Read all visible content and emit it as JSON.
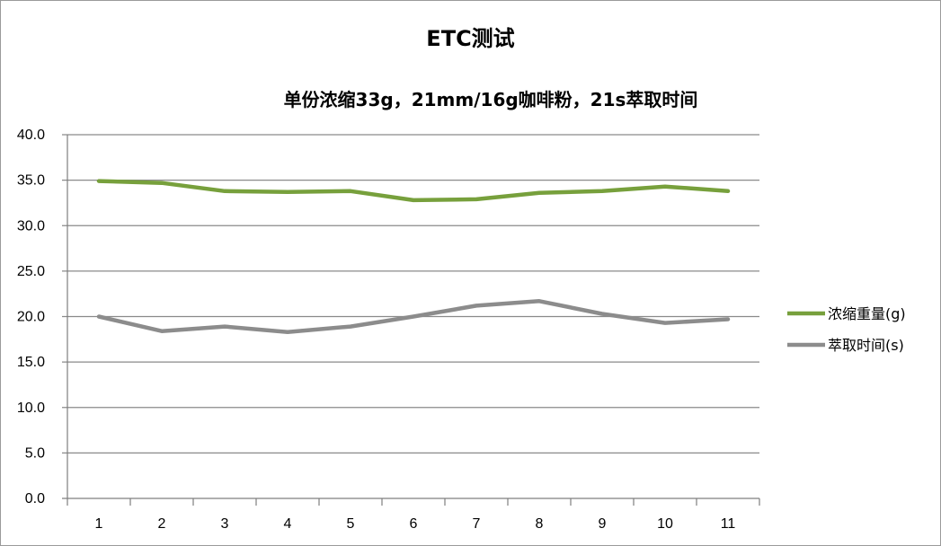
{
  "chart_data": {
    "type": "line",
    "title": "ETC测试",
    "subtitle": "单份浓缩33g，21mm/16g咖啡粉，21s萃取时间",
    "xlabel": "",
    "ylabel": "",
    "categories": [
      "1",
      "2",
      "3",
      "4",
      "5",
      "6",
      "7",
      "8",
      "9",
      "10",
      "11"
    ],
    "ylim": [
      0,
      40
    ],
    "yticks": [
      "0.0",
      "5.0",
      "10.0",
      "15.0",
      "20.0",
      "25.0",
      "30.0",
      "35.0",
      "40.0"
    ],
    "grid": true,
    "legend_position": "right",
    "series": [
      {
        "name": "浓缩重量(g)",
        "color": "#77a03c",
        "values": [
          34.9,
          34.7,
          33.8,
          33.7,
          33.8,
          32.8,
          32.9,
          33.6,
          33.8,
          34.3,
          33.8
        ]
      },
      {
        "name": "萃取时间(s)",
        "color": "#8c8c8c",
        "values": [
          20.0,
          18.4,
          18.9,
          18.3,
          18.9,
          20.0,
          21.2,
          21.7,
          20.3,
          19.3,
          19.7
        ]
      }
    ]
  }
}
